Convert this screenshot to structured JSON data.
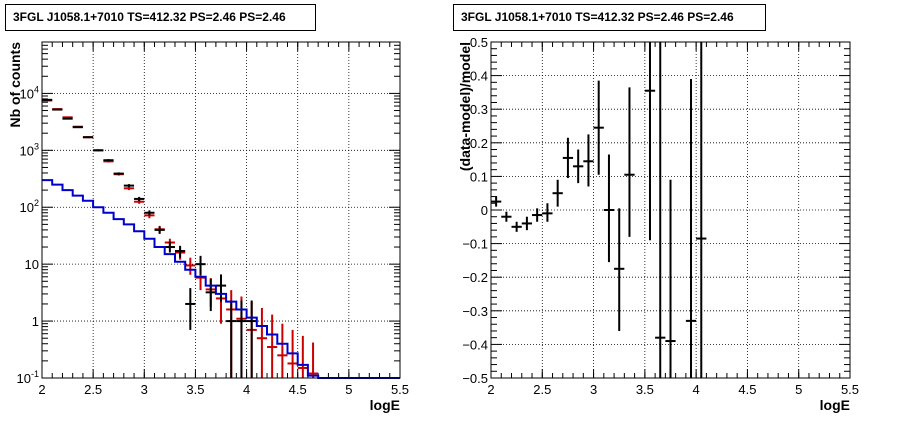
{
  "chart_data": [
    {
      "type": "scatter",
      "title": "3FGL J1058.1+7010 TS=412.32 PS=2.46 PS=2.46",
      "xlabel": "logE",
      "ylabel": "Nb of counts",
      "xlim": [
        2,
        5.5
      ],
      "ylim": [
        0.1,
        80000
      ],
      "yscale": "log",
      "grid": true,
      "x_ticks": [
        "2",
        "2.5",
        "3",
        "3.5",
        "4",
        "4.5",
        "5",
        "5.5"
      ],
      "y_ticks": [
        "10^-1",
        "1",
        "10",
        "10^2",
        "10^3",
        "10^4"
      ],
      "series": [
        {
          "kind": "points_with_errors",
          "color": "#cc0000",
          "x": [
            2.05,
            2.15,
            2.25,
            2.35,
            2.45,
            2.55,
            2.65,
            2.75,
            2.85,
            2.95,
            3.05,
            3.15,
            3.25,
            3.35,
            3.45,
            3.55,
            3.65,
            3.75,
            3.85,
            3.95,
            4.05,
            4.15,
            4.25,
            4.35,
            4.45,
            4.55,
            4.65
          ],
          "y": [
            7500,
            5300,
            3800,
            2600,
            1700,
            1000,
            640,
            380,
            215,
            125,
            72,
            41,
            24,
            16,
            9.5,
            5.8,
            3.6,
            2.5,
            1.6,
            1.1,
            0.7,
            0.5,
            0.35,
            0.25,
            0.18,
            0.15,
            0.12
          ],
          "ylow": [
            7350,
            5150,
            3700,
            2520,
            1640,
            960,
            610,
            360,
            200,
            115,
            64,
            35,
            20,
            12,
            6.5,
            3.5,
            1.8,
            0.9,
            0.1,
            0.1,
            0.1,
            0.1,
            0.1,
            0.1,
            0.1,
            0.1,
            0.1
          ],
          "yhigh": [
            7650,
            5450,
            3900,
            2680,
            1760,
            1040,
            670,
            400,
            230,
            135,
            80,
            47,
            28,
            20,
            13,
            8.5,
            5.7,
            4.3,
            3.5,
            2.7,
            2.2,
            1.7,
            1.3,
            0.9,
            0.7,
            0.55,
            0.42
          ]
        },
        {
          "kind": "points_with_errors",
          "color": "#000000",
          "x": [
            2.05,
            2.15,
            2.25,
            2.35,
            2.45,
            2.55,
            2.65,
            2.75,
            2.85,
            2.95,
            3.05,
            3.15,
            3.25,
            3.35,
            3.45,
            3.55,
            3.65,
            3.75,
            3.85,
            3.95,
            4.05
          ],
          "y": [
            7700,
            5200,
            3600,
            2550,
            1700,
            1000,
            670,
            390,
            240,
            140,
            80,
            40,
            20,
            17,
            2,
            10,
            3.2,
            4.2,
            1,
            1,
            1
          ],
          "ylow": [
            7550,
            5050,
            3500,
            2470,
            1640,
            960,
            640,
            370,
            225,
            128,
            72,
            34,
            16,
            13,
            0.7,
            6.5,
            1.5,
            2.2,
            0.1,
            0.1,
            0.1
          ],
          "yhigh": [
            7850,
            5350,
            3700,
            2630,
            1760,
            1040,
            700,
            410,
            255,
            152,
            88,
            46,
            25,
            21,
            3.8,
            14,
            5.5,
            6.6,
            2.3,
            2.3,
            2.3
          ]
        },
        {
          "kind": "step",
          "color": "#0000cc",
          "edges": [
            2.0,
            2.1,
            2.2,
            2.3,
            2.4,
            2.5,
            2.6,
            2.7,
            2.8,
            2.9,
            3.0,
            3.1,
            3.2,
            3.3,
            3.4,
            3.5,
            3.6,
            3.7,
            3.8,
            3.9,
            4.0,
            4.1,
            4.2,
            4.3,
            4.4,
            4.5,
            4.6,
            4.7,
            4.8,
            4.9,
            5.0,
            5.1,
            5.2,
            5.3,
            5.4,
            5.5
          ],
          "values": [
            300,
            250,
            200,
            160,
            130,
            100,
            80,
            62,
            50,
            38,
            28,
            20,
            15,
            11,
            8,
            6,
            4.2,
            3,
            2.2,
            1.6,
            1.15,
            0.82,
            0.58,
            0.4,
            0.27,
            0.17,
            0.11,
            0.1,
            0.1,
            0.1,
            0.1,
            0.1,
            0.1,
            0.1,
            0.1
          ]
        }
      ]
    },
    {
      "type": "scatter",
      "title": "3FGL J1058.1+7010 TS=412.32 PS=2.46 PS=2.46",
      "xlabel": "logE",
      "ylabel": "(data-model)/model",
      "xlim": [
        2,
        5.5
      ],
      "ylim": [
        -0.5,
        0.5
      ],
      "grid": true,
      "x_ticks": [
        "2",
        "2.5",
        "3",
        "3.5",
        "4",
        "4.5",
        "5",
        "5.5"
      ],
      "y_ticks": [
        "−0.5",
        "−0.4",
        "−0.3",
        "−0.2",
        "−0.1",
        "0",
        "0.1",
        "0.2",
        "0.3",
        "0.4",
        "0.5"
      ],
      "series": [
        {
          "kind": "points_with_errors",
          "color": "#000000",
          "x": [
            2.05,
            2.15,
            2.25,
            2.35,
            2.45,
            2.55,
            2.65,
            2.75,
            2.85,
            2.95,
            3.05,
            3.15,
            3.25,
            3.35,
            3.55,
            3.65,
            3.75,
            3.95,
            4.05
          ],
          "y": [
            0.025,
            -0.02,
            -0.05,
            -0.04,
            -0.015,
            -0.01,
            0.05,
            0.155,
            0.13,
            0.145,
            0.245,
            0.0,
            -0.175,
            0.105,
            0.355,
            -0.38,
            -0.39,
            -0.33,
            -0.085
          ],
          "ylow": [
            0.01,
            -0.035,
            -0.065,
            -0.06,
            -0.035,
            -0.035,
            0.01,
            0.095,
            0.08,
            0.07,
            0.105,
            -0.155,
            -0.36,
            -0.08,
            -0.09,
            -0.5,
            -0.5,
            -0.5,
            -0.5
          ],
          "yhigh": [
            0.04,
            -0.005,
            -0.035,
            -0.02,
            0.005,
            0.02,
            0.09,
            0.215,
            0.18,
            0.225,
            0.385,
            0.165,
            0.005,
            0.365,
            0.5,
            0.5,
            0.09,
            0.39,
            0.5
          ]
        }
      ]
    }
  ]
}
